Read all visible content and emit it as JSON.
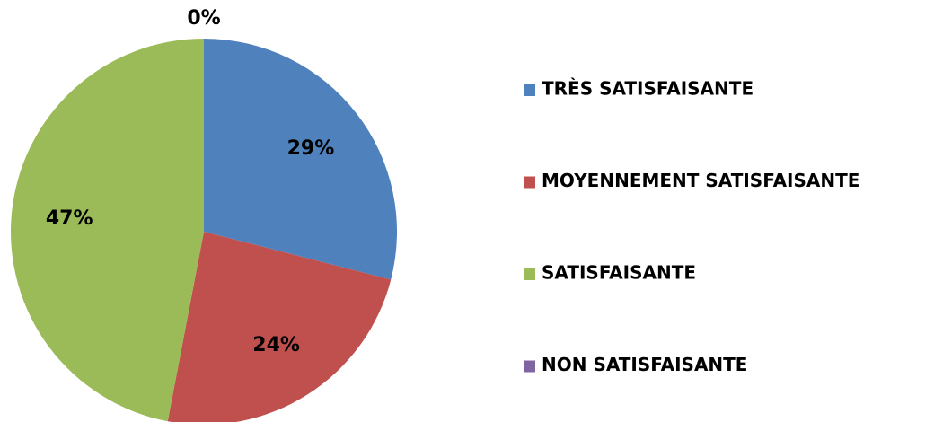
{
  "chart_data": {
    "type": "pie",
    "categories": [
      "TRÈS SATISFAISANTE",
      "MOYENNEMENT SATISFAISANTE",
      "SATISFAISANTE",
      "NON SATISFAISANTE"
    ],
    "values": [
      29,
      24,
      47,
      0
    ],
    "value_labels": [
      "29%",
      "24%",
      "47%",
      "0%"
    ],
    "colors": [
      "#4f81bd",
      "#c0504d",
      "#9bbb59",
      "#8064a2"
    ],
    "legend": "right"
  }
}
